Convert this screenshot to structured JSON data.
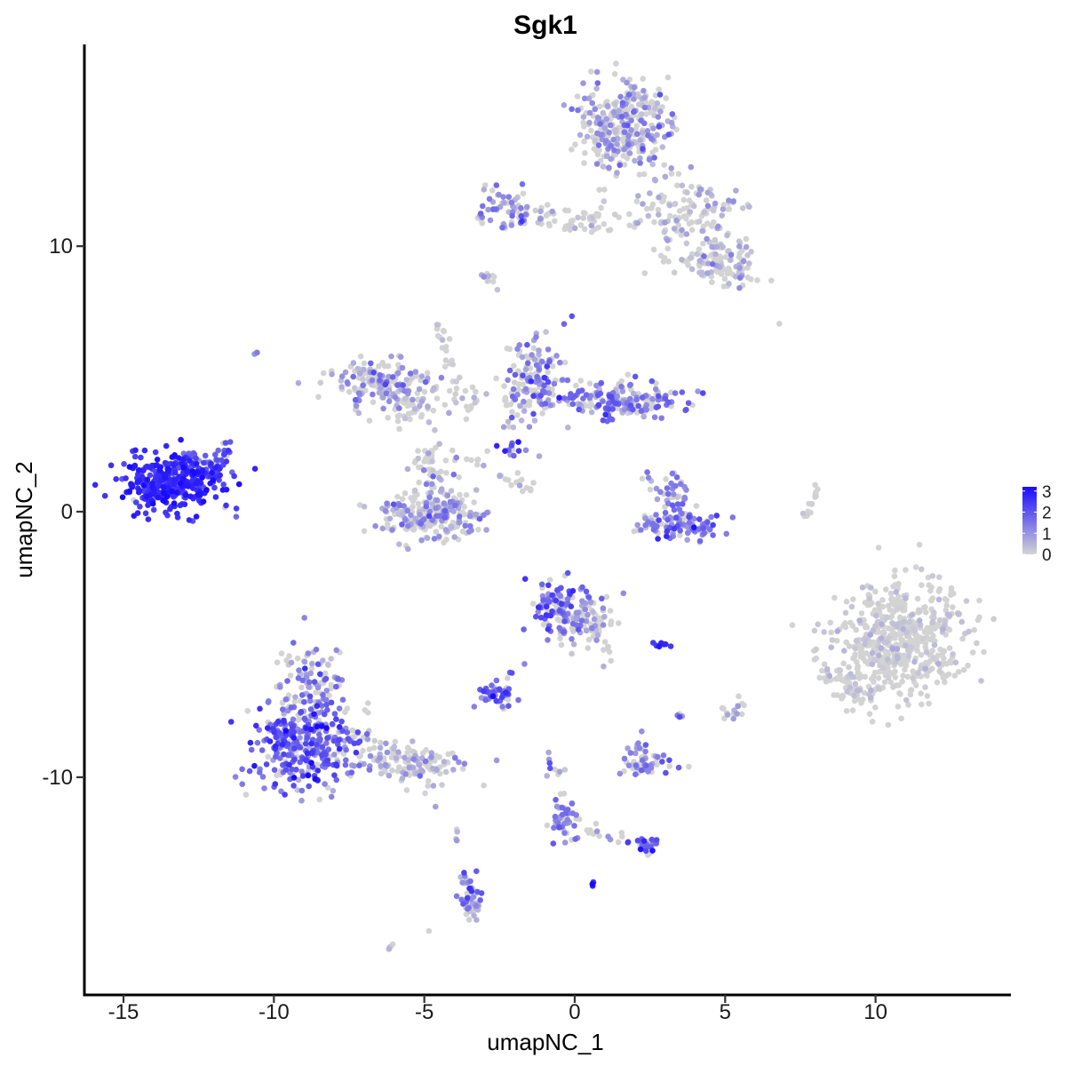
{
  "chart_data": {
    "type": "scatter",
    "title": "Sgk1",
    "xlabel": "umapNC_1",
    "ylabel": "umapNC_2",
    "xlim": [
      -16.3,
      14.5
    ],
    "ylim": [
      -18.2,
      17.6
    ],
    "x_ticks": [
      -15,
      -10,
      -5,
      0,
      5,
      10
    ],
    "y_ticks": [
      -10,
      0,
      10
    ],
    "x_tick_labels": [
      "-15",
      "-10",
      "-5",
      "0",
      "5",
      "10"
    ],
    "y_tick_labels": [
      "-10",
      "0",
      "10"
    ],
    "grid": false,
    "legend_placement": "right",
    "color_scale": {
      "low_color": "#d3d3d3",
      "high_color": "#1a0aff",
      "range": [
        0,
        3.2
      ],
      "breaks": [
        3,
        2,
        1,
        0
      ],
      "break_labels": [
        "3",
        "2",
        "1",
        "0"
      ]
    },
    "clusters": [
      {
        "id": "c1",
        "center": [
          -13.4,
          1.1
        ],
        "spread": [
          0.85,
          0.55
        ],
        "n": 380,
        "expr_mean": 2.6,
        "expr_sd": 0.35
      },
      {
        "id": "c1b",
        "center": [
          -12.2,
          1.9
        ],
        "spread": [
          0.35,
          0.35
        ],
        "n": 30,
        "expr_mean": 2.0,
        "expr_sd": 0.4
      },
      {
        "id": "c2a",
        "center": [
          -9.0,
          -8.8
        ],
        "spread": [
          0.9,
          0.75
        ],
        "n": 330,
        "expr_mean": 1.8,
        "expr_sd": 0.6
      },
      {
        "id": "c2b",
        "center": [
          -8.8,
          -6.5
        ],
        "spread": [
          0.55,
          0.8
        ],
        "n": 110,
        "expr_mean": 1.1,
        "expr_sd": 0.6
      },
      {
        "id": "c2c",
        "center": [
          -5.5,
          -9.5
        ],
        "spread": [
          0.95,
          0.35
        ],
        "n": 110,
        "expr_mean": 0.6,
        "expr_sd": 0.5
      },
      {
        "id": "c3",
        "center": [
          -4.8,
          -0.2
        ],
        "spread": [
          1.0,
          0.45
        ],
        "n": 230,
        "expr_mean": 0.8,
        "expr_sd": 0.6
      },
      {
        "id": "c3b",
        "center": [
          -4.6,
          1.4
        ],
        "spread": [
          0.5,
          0.5
        ],
        "n": 40,
        "expr_mean": 0.5,
        "expr_sd": 0.5
      },
      {
        "id": "c4",
        "center": [
          -6.5,
          4.9
        ],
        "spread": [
          0.8,
          0.45
        ],
        "n": 140,
        "expr_mean": 0.9,
        "expr_sd": 0.6
      },
      {
        "id": "c4b",
        "center": [
          -5.3,
          4.0
        ],
        "spread": [
          0.6,
          0.4
        ],
        "n": 50,
        "expr_mean": 0.3,
        "expr_sd": 0.4
      },
      {
        "id": "c5a",
        "center": [
          -1.3,
          5.0
        ],
        "spread": [
          0.5,
          0.75
        ],
        "n": 140,
        "expr_mean": 1.2,
        "expr_sd": 0.6
      },
      {
        "id": "c5b",
        "center": [
          1.6,
          4.2
        ],
        "spread": [
          1.1,
          0.35
        ],
        "n": 190,
        "expr_mean": 1.3,
        "expr_sd": 0.6
      },
      {
        "id": "c6",
        "center": [
          1.6,
          14.5
        ],
        "spread": [
          0.75,
          0.85
        ],
        "n": 330,
        "expr_mean": 0.7,
        "expr_sd": 0.6
      },
      {
        "id": "c6b",
        "center": [
          3.5,
          11.2
        ],
        "spread": [
          0.9,
          0.6
        ],
        "n": 110,
        "expr_mean": 0.35,
        "expr_sd": 0.45
      },
      {
        "id": "c6c",
        "center": [
          5.0,
          9.4
        ],
        "spread": [
          0.6,
          0.5
        ],
        "n": 110,
        "expr_mean": 0.4,
        "expr_sd": 0.45
      },
      {
        "id": "c6d",
        "center": [
          -2.3,
          11.4
        ],
        "spread": [
          0.45,
          0.4
        ],
        "n": 60,
        "expr_mean": 1.2,
        "expr_sd": 0.6
      },
      {
        "id": "c6e",
        "center": [
          -0.3,
          11.1
        ],
        "spread": [
          0.8,
          0.2
        ],
        "n": 30,
        "expr_mean": 0.3,
        "expr_sd": 0.4
      },
      {
        "id": "c7",
        "center": [
          10.8,
          -4.8
        ],
        "spread": [
          1.05,
          1.1
        ],
        "n": 560,
        "expr_mean": 0.07,
        "expr_sd": 0.25
      },
      {
        "id": "c7b",
        "center": [
          9.3,
          -6.5
        ],
        "spread": [
          0.5,
          0.5
        ],
        "n": 60,
        "expr_mean": 0.1,
        "expr_sd": 0.3
      },
      {
        "id": "c8",
        "center": [
          3.6,
          -0.5
        ],
        "spread": [
          0.7,
          0.25
        ],
        "n": 100,
        "expr_mean": 1.4,
        "expr_sd": 0.6
      },
      {
        "id": "c8b",
        "center": [
          3.3,
          0.6
        ],
        "spread": [
          0.25,
          0.45
        ],
        "n": 40,
        "expr_mean": 1.3,
        "expr_sd": 0.6
      },
      {
        "id": "c9",
        "center": [
          -0.5,
          -3.5
        ],
        "spread": [
          0.45,
          0.55
        ],
        "n": 110,
        "expr_mean": 1.6,
        "expr_sd": 0.6
      },
      {
        "id": "c9b",
        "center": [
          0.6,
          -4.1
        ],
        "spread": [
          0.5,
          0.35
        ],
        "n": 60,
        "expr_mean": 0.6,
        "expr_sd": 0.5
      },
      {
        "id": "c10",
        "center": [
          -2.6,
          -6.9
        ],
        "spread": [
          0.3,
          0.2
        ],
        "n": 45,
        "expr_mean": 1.7,
        "expr_sd": 0.5
      },
      {
        "id": "c11",
        "center": [
          2.4,
          -9.5
        ],
        "spread": [
          0.45,
          0.2
        ],
        "n": 45,
        "expr_mean": 1.0,
        "expr_sd": 0.6
      },
      {
        "id": "c11b",
        "center": [
          2.0,
          -8.9
        ],
        "spread": [
          0.2,
          0.2
        ],
        "n": 12,
        "expr_mean": 1.0,
        "expr_sd": 0.5
      },
      {
        "id": "c12",
        "center": [
          -0.3,
          -11.7
        ],
        "spread": [
          0.25,
          0.35
        ],
        "n": 35,
        "expr_mean": 1.4,
        "expr_sd": 0.5
      },
      {
        "id": "c13",
        "center": [
          2.4,
          -12.5
        ],
        "spread": [
          0.25,
          0.2
        ],
        "n": 25,
        "expr_mean": 1.8,
        "expr_sd": 0.5
      },
      {
        "id": "c14",
        "center": [
          -3.4,
          -14.6
        ],
        "spread": [
          0.2,
          0.55
        ],
        "n": 35,
        "expr_mean": 1.2,
        "expr_sd": 0.6
      },
      {
        "id": "c15",
        "center": [
          -2.2,
          2.3
        ],
        "spread": [
          0.35,
          0.25
        ],
        "n": 12,
        "expr_mean": 2.0,
        "expr_sd": 0.5
      },
      {
        "id": "c16",
        "center": [
          5.2,
          -7.4
        ],
        "spread": [
          0.3,
          0.25
        ],
        "n": 15,
        "expr_mean": 0.3,
        "expr_sd": 0.4
      },
      {
        "id": "c17",
        "center": [
          2.9,
          -5.0
        ],
        "spread": [
          0.1,
          0.06
        ],
        "n": 8,
        "expr_mean": 2.6,
        "expr_sd": 0.3
      },
      {
        "id": "c18",
        "center": [
          0.6,
          -14.0
        ],
        "spread": [
          0.06,
          0.06
        ],
        "n": 5,
        "expr_mean": 2.4,
        "expr_sd": 0.3
      },
      {
        "id": "c19",
        "center": [
          -6.1,
          -16.4
        ],
        "spread": [
          0.1,
          0.06
        ],
        "n": 5,
        "expr_mean": 0.3,
        "expr_sd": 0.3
      },
      {
        "id": "c20",
        "center": [
          -10.6,
          6.0
        ],
        "spread": [
          0.06,
          0.06
        ],
        "n": 3,
        "expr_mean": 1.0,
        "expr_sd": 0.3
      },
      {
        "id": "c21",
        "center": [
          3.5,
          -7.7
        ],
        "spread": [
          0.06,
          0.06
        ],
        "n": 4,
        "expr_mean": 1.5,
        "expr_sd": 0.3
      },
      {
        "id": "c22",
        "center": [
          6.8,
          7.0
        ],
        "spread": [
          0.05,
          0.05
        ],
        "n": 1,
        "expr_mean": 0.0,
        "expr_sd": 0.1
      },
      {
        "id": "c23",
        "center": [
          -4.9,
          -15.8
        ],
        "spread": [
          0.05,
          0.05
        ],
        "n": 1,
        "expr_mean": 0.0,
        "expr_sd": 0.1
      },
      {
        "id": "c24",
        "center": [
          -3.9,
          -12.2
        ],
        "spread": [
          0.1,
          0.3
        ],
        "n": 4,
        "expr_mean": 0.3,
        "expr_sd": 0.3
      },
      {
        "id": "c25",
        "center": [
          -7.3,
          3.9
        ],
        "spread": [
          0.06,
          0.06
        ],
        "n": 3,
        "expr_mean": 0.8,
        "expr_sd": 0.3
      },
      {
        "id": "c26",
        "center": [
          -3.0,
          8.8
        ],
        "spread": [
          0.1,
          0.1
        ],
        "n": 5,
        "expr_mean": 0.6,
        "expr_sd": 0.3
      }
    ],
    "strands": [
      {
        "from": [
          -11.9,
          1.5
        ],
        "to": [
          -11.4,
          2.8
        ],
        "n": 14,
        "jitter": 0.1,
        "expr_mean": 2.1,
        "expr_sd": 0.4
      },
      {
        "from": [
          -4.7,
          7.6
        ],
        "to": [
          -3.8,
          4.2
        ],
        "n": 25,
        "jitter": 0.12,
        "expr_mean": 0.1,
        "expr_sd": 0.2
      },
      {
        "from": [
          -5.0,
          2.2
        ],
        "to": [
          -4.5,
          0.6
        ],
        "n": 18,
        "jitter": 0.15,
        "expr_mean": 0.4,
        "expr_sd": 0.4
      },
      {
        "from": [
          -3.9,
          3.6
        ],
        "to": [
          -3.1,
          4.6
        ],
        "n": 12,
        "jitter": 0.15,
        "expr_mean": 0.2,
        "expr_sd": 0.3
      },
      {
        "from": [
          -2.5,
          1.5
        ],
        "to": [
          -1.5,
          0.8
        ],
        "n": 16,
        "jitter": 0.15,
        "expr_mean": 0.2,
        "expr_sd": 0.3
      },
      {
        "from": [
          -2.3,
          4.5
        ],
        "to": [
          -2.0,
          3.1
        ],
        "n": 14,
        "jitter": 0.12,
        "expr_mean": 0.3,
        "expr_sd": 0.3
      },
      {
        "from": [
          -2.9,
          9.0
        ],
        "to": [
          -2.6,
          8.4
        ],
        "n": 6,
        "jitter": 0.1,
        "expr_mean": 0.6,
        "expr_sd": 0.3
      },
      {
        "from": [
          2.5,
          0.9
        ],
        "to": [
          2.4,
          1.5
        ],
        "n": 5,
        "jitter": 0.1,
        "expr_mean": 1.4,
        "expr_sd": 0.5
      },
      {
        "from": [
          2.1,
          -0.2
        ],
        "to": [
          3.0,
          -0.9
        ],
        "n": 18,
        "jitter": 0.15,
        "expr_mean": 1.2,
        "expr_sd": 0.5
      },
      {
        "from": [
          7.7,
          -0.2
        ],
        "to": [
          8.1,
          1.0
        ],
        "n": 16,
        "jitter": 0.08,
        "expr_mean": 0.05,
        "expr_sd": 0.15
      },
      {
        "from": [
          0.2,
          -3.8
        ],
        "to": [
          1.2,
          -5.5
        ],
        "n": 22,
        "jitter": 0.15,
        "expr_mean": 0.5,
        "expr_sd": 0.4
      },
      {
        "from": [
          -0.8,
          -9.1
        ],
        "to": [
          -0.3,
          -11.5
        ],
        "n": 18,
        "jitter": 0.12,
        "expr_mean": 1.2,
        "expr_sd": 0.5
      },
      {
        "from": [
          0.1,
          -11.9
        ],
        "to": [
          1.8,
          -12.3
        ],
        "n": 12,
        "jitter": 0.12,
        "expr_mean": 0.5,
        "expr_sd": 0.4
      },
      {
        "from": [
          -3.7,
          -13.5
        ],
        "to": [
          -3.2,
          -15.2
        ],
        "n": 16,
        "jitter": 0.12,
        "expr_mean": 1.0,
        "expr_sd": 0.5
      },
      {
        "from": [
          -2.9,
          -6.8
        ],
        "to": [
          -1.6,
          -5.7
        ],
        "n": 8,
        "jitter": 0.12,
        "expr_mean": 1.4,
        "expr_sd": 0.5
      },
      {
        "from": [
          -3.6,
          2.0
        ],
        "to": [
          -3.0,
          1.7
        ],
        "n": 6,
        "jitter": 0.1,
        "expr_mean": 0.2,
        "expr_sd": 0.3
      },
      {
        "from": [
          2.8,
          9.2
        ],
        "to": [
          4.2,
          9.6
        ],
        "n": 14,
        "jitter": 0.2,
        "expr_mean": 0.2,
        "expr_sd": 0.3
      },
      {
        "from": [
          3.0,
          12.8
        ],
        "to": [
          5.4,
          11.6
        ],
        "n": 20,
        "jitter": 0.25,
        "expr_mean": 0.5,
        "expr_sd": 0.4
      },
      {
        "from": [
          -1.3,
          11.1
        ],
        "to": [
          1.3,
          10.6
        ],
        "n": 20,
        "jitter": 0.15,
        "expr_mean": 0.2,
        "expr_sd": 0.3
      },
      {
        "from": [
          -7.5,
          -8.2
        ],
        "to": [
          -4.6,
          -10.3
        ],
        "n": 40,
        "jitter": 0.35,
        "expr_mean": 0.6,
        "expr_sd": 0.5
      },
      {
        "from": [
          -7.0,
          5.2
        ],
        "to": [
          -5.9,
          4.8
        ],
        "n": 18,
        "jitter": 0.3,
        "expr_mean": 0.3,
        "expr_sd": 0.4
      }
    ]
  }
}
